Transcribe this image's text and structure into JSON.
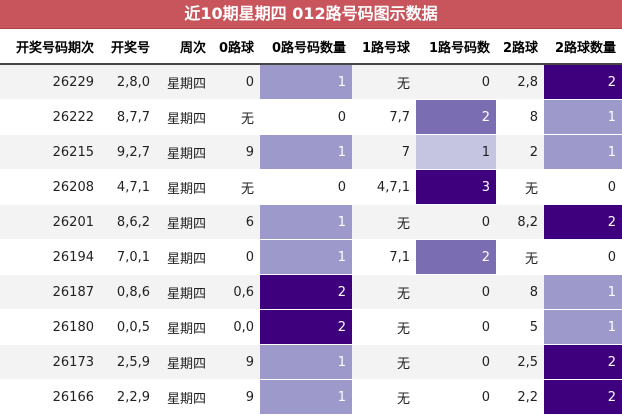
{
  "title": "近10期星期四 012路号码图示数据",
  "headers": [
    "开奖号码期次",
    "开奖号",
    "周次",
    "0路球",
    "0路号码数量",
    "1路号球",
    "1路号码数",
    "2路球",
    "2路球数量"
  ],
  "rows": [
    {
      "issue": "26229",
      "numbers": "2,8,0",
      "weekday": "星期四",
      "r0": "0",
      "r0n": "1",
      "r1": "无",
      "r1n": "0",
      "r2": "2,8",
      "r2n": "2"
    },
    {
      "issue": "26222",
      "numbers": "8,7,7",
      "weekday": "星期四",
      "r0": "无",
      "r0n": "0",
      "r1": "7,7",
      "r1n": "2",
      "r2": "8",
      "r2n": "1"
    },
    {
      "issue": "26215",
      "numbers": "9,2,7",
      "weekday": "星期四",
      "r0": "9",
      "r0n": "1",
      "r1": "7",
      "r1n": "1",
      "r2": "2",
      "r2n": "1"
    },
    {
      "issue": "26208",
      "numbers": "4,7,1",
      "weekday": "星期四",
      "r0": "无",
      "r0n": "0",
      "r1": "4,7,1",
      "r1n": "3",
      "r2": "无",
      "r2n": "0"
    },
    {
      "issue": "26201",
      "numbers": "8,6,2",
      "weekday": "星期四",
      "r0": "6",
      "r0n": "1",
      "r1": "无",
      "r1n": "0",
      "r2": "8,2",
      "r2n": "2"
    },
    {
      "issue": "26194",
      "numbers": "7,0,1",
      "weekday": "星期四",
      "r0": "0",
      "r0n": "1",
      "r1": "7,1",
      "r1n": "2",
      "r2": "无",
      "r2n": "0"
    },
    {
      "issue": "26187",
      "numbers": "0,8,6",
      "weekday": "星期四",
      "r0": "0,6",
      "r0n": "2",
      "r1": "无",
      "r1n": "0",
      "r2": "8",
      "r2n": "1"
    },
    {
      "issue": "26180",
      "numbers": "0,0,5",
      "weekday": "星期四",
      "r0": "0,0",
      "r0n": "2",
      "r1": "无",
      "r1n": "0",
      "r2": "5",
      "r2n": "1"
    },
    {
      "issue": "26173",
      "numbers": "2,5,9",
      "weekday": "星期四",
      "r0": "9",
      "r0n": "1",
      "r1": "无",
      "r1n": "0",
      "r2": "2,5",
      "r2n": "2"
    },
    {
      "issue": "26166",
      "numbers": "2,2,9",
      "weekday": "星期四",
      "r0": "9",
      "r0n": "1",
      "r1": "无",
      "r1n": "0",
      "r2": "2,2",
      "r2n": "2"
    }
  ],
  "colors": {
    "title_bg": "#c9555c",
    "count_1_r0": "#9e99cb",
    "count_2_r0": "#3f007d",
    "count_1_r1": "#c6c5e1",
    "count_2_r1": "#7a6db2",
    "count_3_r1": "#3f007d",
    "count_1_r2": "#9e99cb",
    "count_2_r2": "#3f007d"
  }
}
